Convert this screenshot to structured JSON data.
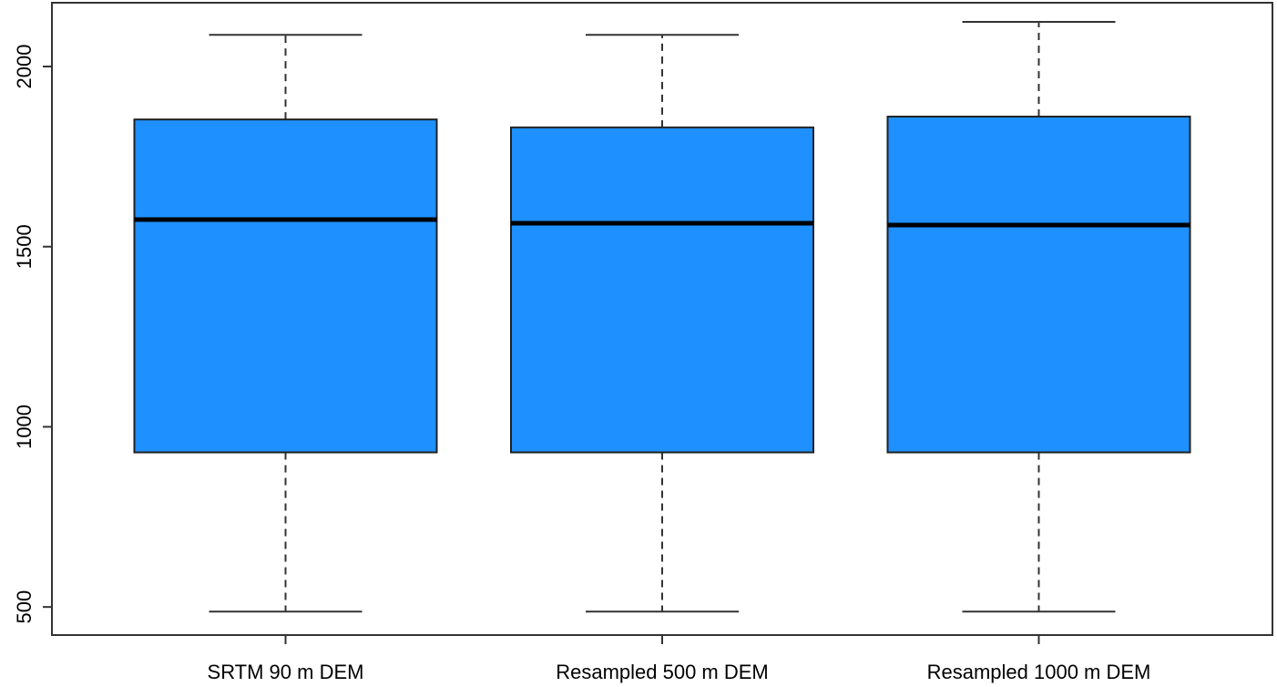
{
  "chart_data": {
    "type": "box",
    "categories": [
      "SRTM 90 m DEM",
      "Resampled 500 m DEM",
      "Resampled 1000 m DEM"
    ],
    "color": "#1e90ff",
    "boxes": [
      {
        "whislo": 487,
        "q1": 929,
        "med": 1575,
        "q3": 1853,
        "whishi": 2088
      },
      {
        "whislo": 487,
        "q1": 929,
        "med": 1565,
        "q3": 1831,
        "whishi": 2088
      },
      {
        "whislo": 487,
        "q1": 929,
        "med": 1560,
        "q3": 1861,
        "whishi": 2124
      }
    ],
    "ylim": [
      422,
      2177
    ],
    "yticks": [
      500,
      1000,
      1500,
      2000
    ]
  }
}
